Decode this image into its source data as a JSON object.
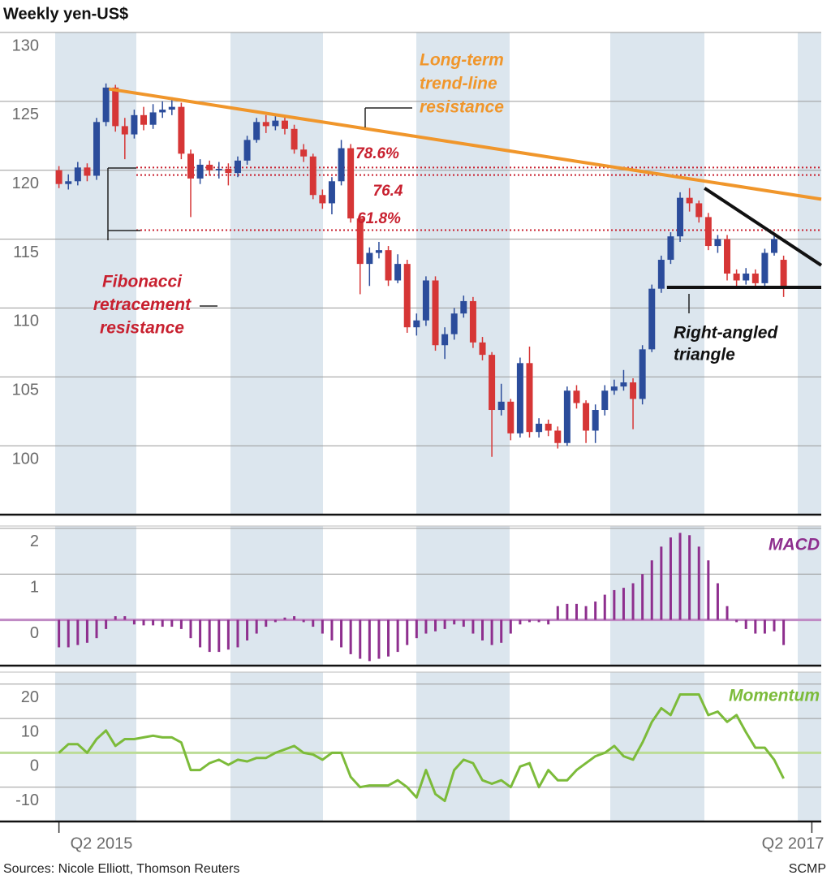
{
  "chart_data": [
    {
      "type": "candlestick",
      "title": "Weekly yen-US$",
      "up_color": "#2b4c9b",
      "down_color": "#d63636",
      "open": [
        120,
        119,
        119.2,
        120.2,
        119.6,
        123.5,
        126,
        123.2,
        122.6,
        124,
        123.3,
        124.2,
        124.4,
        124.6,
        121.2,
        119.4,
        120.4,
        120,
        120.1,
        119.8,
        120.7,
        122.2,
        123.5,
        123.2,
        123.6,
        123,
        121.5,
        121,
        118.2,
        117.6,
        119.2,
        121.6,
        116.5,
        113.2,
        114,
        114.2,
        112,
        113.2,
        108.6,
        109.1,
        112,
        107.3,
        108.1,
        109.6,
        110.5,
        107.5,
        106.6,
        102.6,
        103.2,
        100.9,
        106,
        101,
        101.6,
        101.1,
        100.2,
        104,
        103.1,
        101.1,
        102.6,
        104,
        104.3,
        104.6,
        103.4,
        107,
        111.4,
        113.5,
        115.2,
        118,
        117.6,
        116.6,
        114.5,
        115,
        112.5,
        112,
        112.5,
        111.8,
        114,
        113.5
      ],
      "high": [
        120.3,
        119.7,
        120.6,
        120.5,
        123.8,
        126.3,
        126.2,
        123.8,
        124.4,
        124.6,
        124.8,
        125,
        125.3,
        124.9,
        121.5,
        120.8,
        120.7,
        120.6,
        120.5,
        121,
        122.5,
        123.8,
        124,
        124,
        123.9,
        123.3,
        121.9,
        121.2,
        118.6,
        119.5,
        122.2,
        121.9,
        116.9,
        114.4,
        114.8,
        114.5,
        113.9,
        113.5,
        109.6,
        112.3,
        112.3,
        108.6,
        110,
        110.9,
        110.8,
        107.9,
        106.8,
        104.5,
        103.4,
        106.4,
        107.2,
        102,
        101.9,
        101.4,
        104.3,
        104.4,
        103.3,
        103,
        104.4,
        104.8,
        105.5,
        104.9,
        107.3,
        111.7,
        113.8,
        115.5,
        118.4,
        118.7,
        117.8,
        116.9,
        115.3,
        115.3,
        112.8,
        112.9,
        112.8,
        114.3,
        115.4,
        113.8
      ],
      "low": [
        118.7,
        118.6,
        118.9,
        119.2,
        119.3,
        123.2,
        122.8,
        120.8,
        122.3,
        122.9,
        123,
        123.8,
        124,
        120.8,
        116.6,
        119,
        119.6,
        119.4,
        118.9,
        119.5,
        120.4,
        122,
        122.7,
        122.9,
        122.6,
        121.2,
        120.6,
        117.9,
        117.2,
        116.8,
        118.9,
        116.2,
        111,
        111.6,
        113.6,
        111.6,
        111.8,
        108.2,
        108,
        108.7,
        106.9,
        106.3,
        107.7,
        109.3,
        107.1,
        106.2,
        99.2,
        102.2,
        100.4,
        100.6,
        100.6,
        100.6,
        100.7,
        99.8,
        100,
        102.7,
        100.2,
        100.2,
        102.2,
        103.7,
        104,
        101.2,
        103,
        106.8,
        111.1,
        113.2,
        114.8,
        117,
        116.2,
        114.2,
        114,
        112,
        111.5,
        111.7,
        111.4,
        111.5,
        113.8,
        110.8
      ],
      "close": [
        119,
        119.2,
        120.2,
        119.6,
        123.5,
        126,
        123.2,
        122.6,
        124,
        123.3,
        124.2,
        124.4,
        124.6,
        121.2,
        119.4,
        120.4,
        120,
        120.1,
        119.8,
        120.7,
        122.2,
        123.5,
        123.2,
        123.6,
        123,
        121.5,
        121,
        118.2,
        117.6,
        119.2,
        121.6,
        116.5,
        113.2,
        114,
        114.2,
        112,
        113.2,
        108.6,
        109.1,
        112,
        107.3,
        108.1,
        109.6,
        110.5,
        107.5,
        106.6,
        102.6,
        103.2,
        100.9,
        106,
        101,
        101.6,
        101.1,
        100.2,
        104,
        103.1,
        101.1,
        102.6,
        104,
        104.3,
        104.6,
        103.4,
        107,
        111.4,
        113.5,
        115.2,
        118,
        117.6,
        116.6,
        114.5,
        115,
        112.5,
        112,
        112.5,
        111.8,
        114,
        115,
        111.6
      ],
      "xlim": [
        -0.4,
        81
      ],
      "ylim": [
        95,
        130
      ],
      "yticks": [
        100,
        105,
        110,
        115,
        120,
        125,
        130
      ],
      "grid": true,
      "lines": [
        {
          "color": "#f0962b",
          "x": [
            5.3,
            81
          ],
          "y": [
            125.9,
            117.9
          ]
        },
        {
          "color": "#111111",
          "x": [
            68.6,
            81
          ],
          "y": [
            118.7,
            113.1
          ]
        },
        {
          "color": "#111111",
          "x": [
            64.6,
            81
          ],
          "y": [
            111.5,
            111.5
          ]
        }
      ],
      "fib_color": "#c8202f",
      "fib_levels": [
        {
          "label": "78.6%",
          "value": 120.2
        },
        {
          "label": "76.4",
          "value": 119.65
        },
        {
          "label": "61.8%",
          "value": 115.65
        }
      ],
      "trend_annotation": [
        "Long-term",
        "trend-line",
        "resistance"
      ],
      "fib_annotation": [
        "Fibonacci",
        "retracement",
        "resistance"
      ],
      "triangle_annotation": [
        "Right-angled",
        "triangle"
      ]
    },
    {
      "type": "bar",
      "label": "MACD",
      "color": "#8e2f8e",
      "zero_color": "#c08ac4",
      "values": [
        -0.6,
        -0.6,
        -0.55,
        -0.5,
        -0.4,
        -0.2,
        0.08,
        0.08,
        -0.1,
        -0.12,
        -0.12,
        -0.15,
        -0.15,
        -0.2,
        -0.4,
        -0.6,
        -0.7,
        -0.7,
        -0.65,
        -0.6,
        -0.45,
        -0.3,
        -0.15,
        -0.05,
        0.05,
        0.08,
        -0.05,
        -0.15,
        -0.3,
        -0.45,
        -0.6,
        -0.75,
        -0.85,
        -0.9,
        -0.85,
        -0.8,
        -0.7,
        -0.55,
        -0.4,
        -0.3,
        -0.25,
        -0.2,
        -0.1,
        -0.15,
        -0.3,
        -0.45,
        -0.55,
        -0.5,
        -0.3,
        -0.1,
        -0.05,
        -0.05,
        -0.1,
        0.3,
        0.35,
        0.35,
        0.3,
        0.4,
        0.55,
        0.65,
        0.7,
        0.8,
        1.0,
        1.3,
        1.6,
        1.8,
        1.9,
        1.85,
        1.6,
        1.3,
        0.8,
        0.3,
        -0.05,
        -0.2,
        -0.3,
        -0.3,
        -0.25,
        -0.55
      ],
      "xlim": [
        -0.4,
        81
      ],
      "ylim": [
        -1,
        2.05
      ],
      "yticks": [
        0,
        1,
        2
      ],
      "grid": true
    },
    {
      "type": "line",
      "label": "Momentum",
      "color": "#7cbb3a",
      "zero_color": "#bcdc96",
      "values": [
        0,
        2.5,
        2.5,
        0,
        4,
        6.5,
        2,
        4,
        4,
        4.5,
        5,
        4.5,
        4.5,
        3,
        -5,
        -5,
        -3,
        -2,
        -3.5,
        -2,
        -2.5,
        -1.5,
        -1.5,
        0,
        1,
        2,
        0,
        -0.5,
        -2,
        0,
        0,
        -7,
        -10,
        -9.5,
        -9.5,
        -9.5,
        -8,
        -10,
        -13,
        -5,
        -12,
        -14,
        -5,
        -2,
        -3,
        -8,
        -9,
        -8,
        -10,
        -4,
        -3,
        -10,
        -5,
        -8,
        -8,
        -5,
        -3,
        -1,
        0,
        2,
        -1,
        -2,
        3,
        9,
        13,
        11,
        17,
        17,
        17,
        11,
        12,
        9,
        11,
        6,
        1.5,
        1.5,
        -2,
        -7.5
      ],
      "xlim": [
        -0.4,
        81
      ],
      "ylim": [
        -20,
        23.5
      ],
      "yticks": [
        -10,
        0,
        10,
        20
      ],
      "grid": true,
      "xticks": [
        {
          "value": 0,
          "label": "Q2 2015"
        },
        {
          "value": 80,
          "label": "Q2 2017"
        }
      ]
    }
  ],
  "footer": {
    "source": "Sources: Nicole Elliott, Thomson Reuters",
    "credit": "SCMP"
  }
}
